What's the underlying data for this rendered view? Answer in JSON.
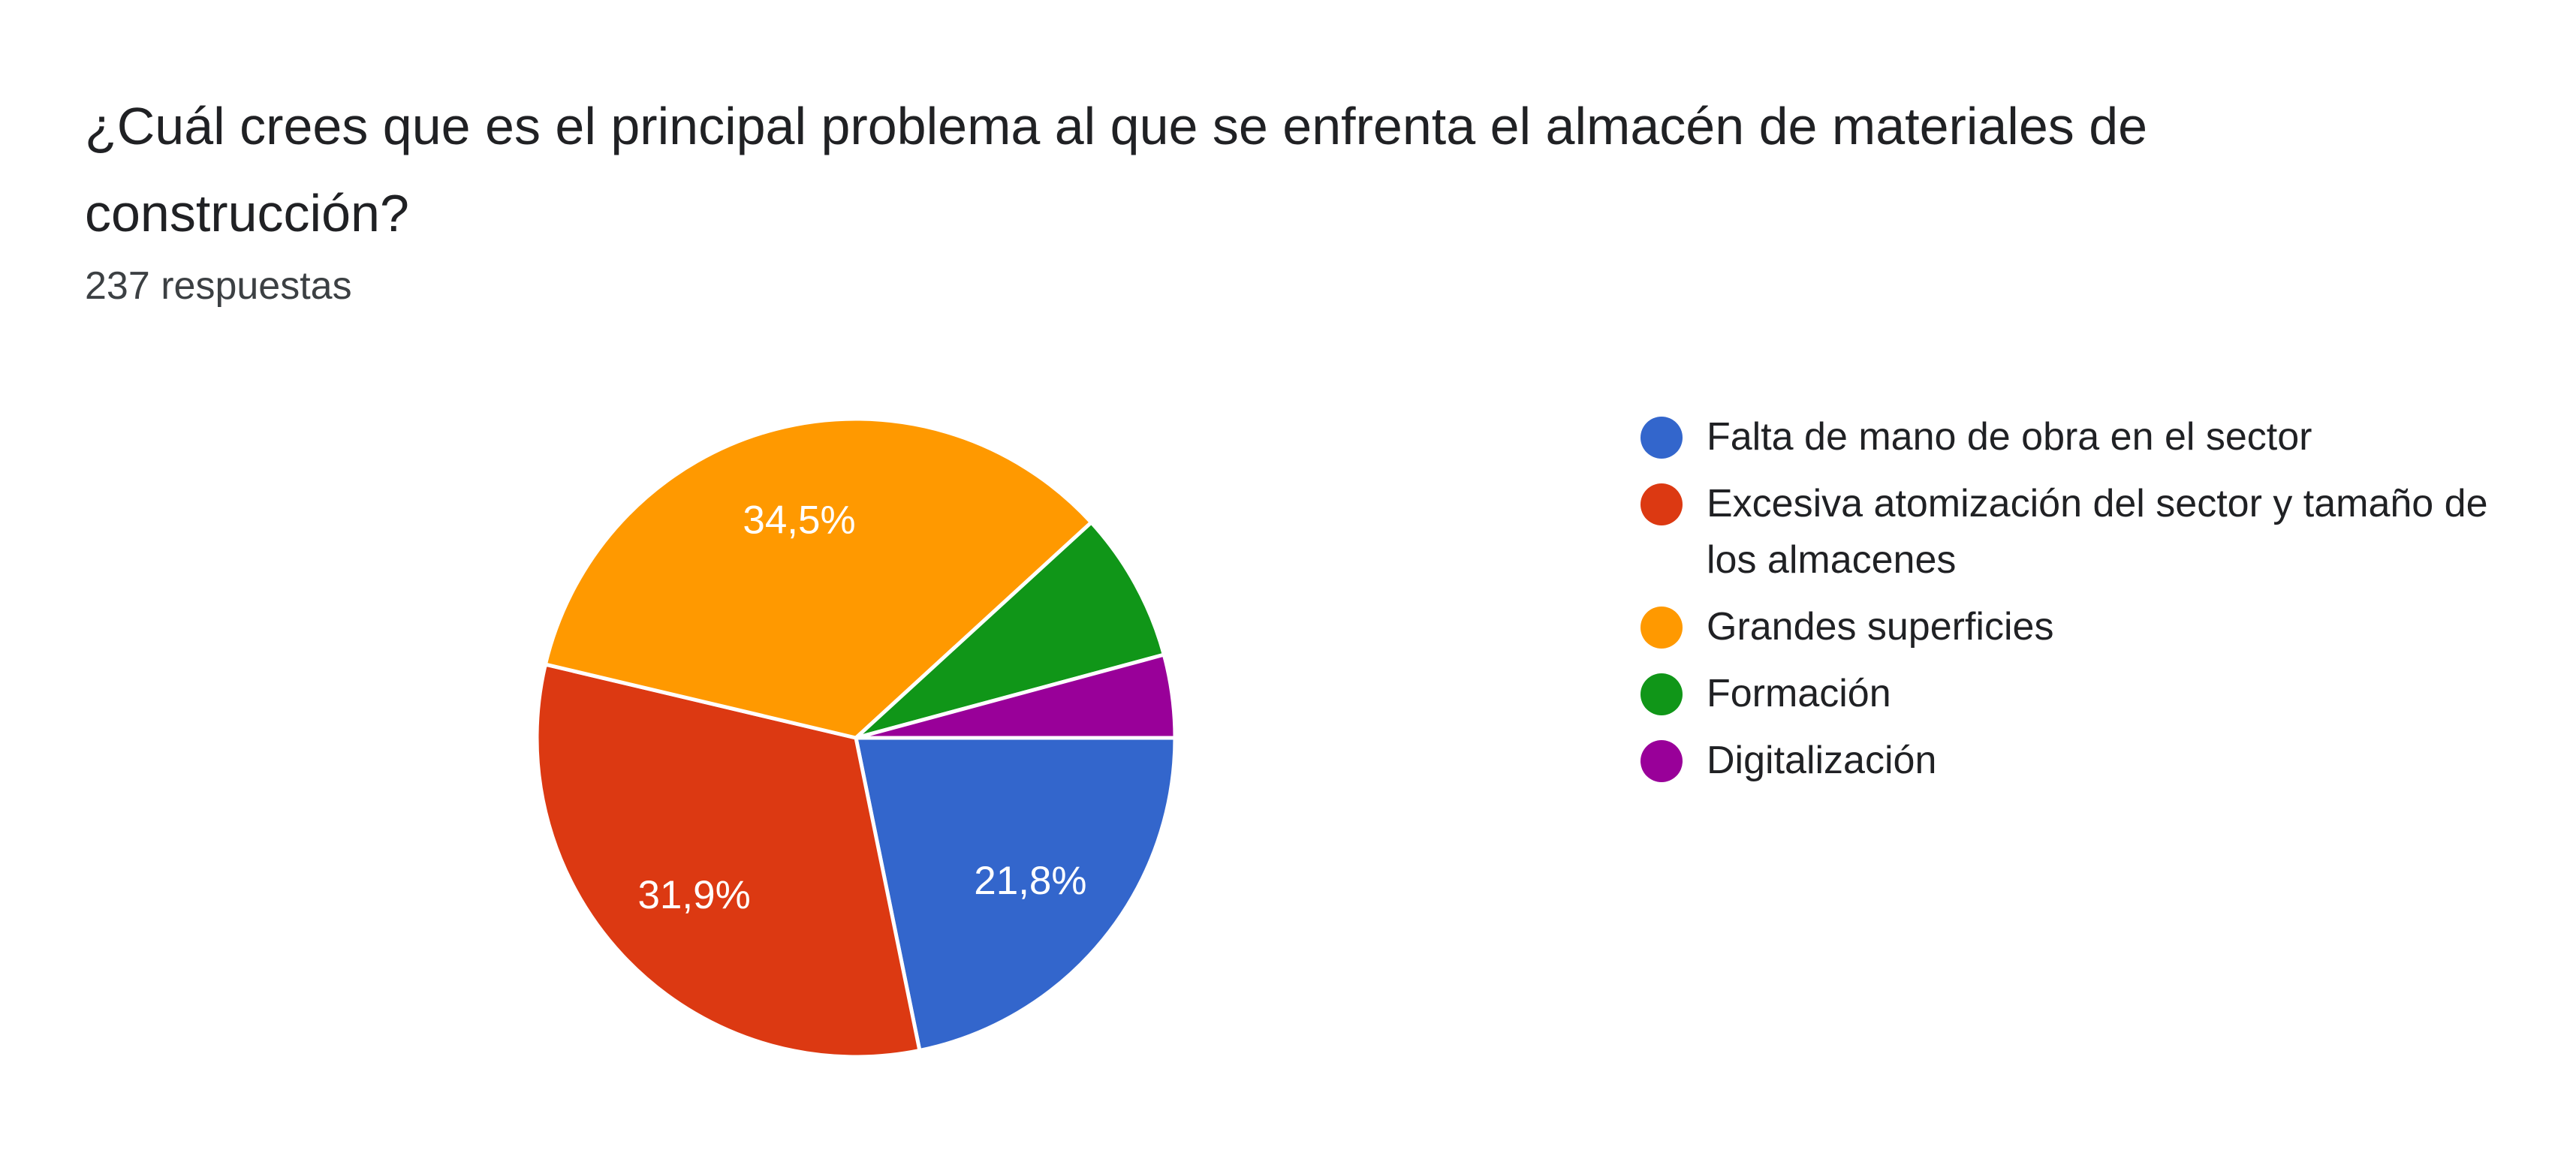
{
  "title": "¿Cuál crees que es el principal problema al que se enfrenta el almacén de materiales de construcción?",
  "subtitle": "237 respuestas",
  "chart_data": {
    "type": "pie",
    "title": "¿Cuál crees que es el principal problema al que se enfrenta el almacén de materiales de construcción?",
    "subtitle": "237 respuestas",
    "legend_position": "right",
    "slices": [
      {
        "name": "Falta de mano de obra en el sector",
        "value": 21.8,
        "label": "21,8%",
        "color": "#3366cc"
      },
      {
        "name": "Excesiva atomización del sector y tamaño de los almacenes",
        "value": 31.9,
        "label": "31,9%",
        "color": "#dc3912"
      },
      {
        "name": "Grandes superficies",
        "value": 34.5,
        "label": "34,5%",
        "color": "#ff9900"
      },
      {
        "name": "Formación",
        "value": 7.6,
        "color": "#109618"
      },
      {
        "name": "Digitalización",
        "value": 4.2,
        "color": "#990099"
      }
    ]
  }
}
